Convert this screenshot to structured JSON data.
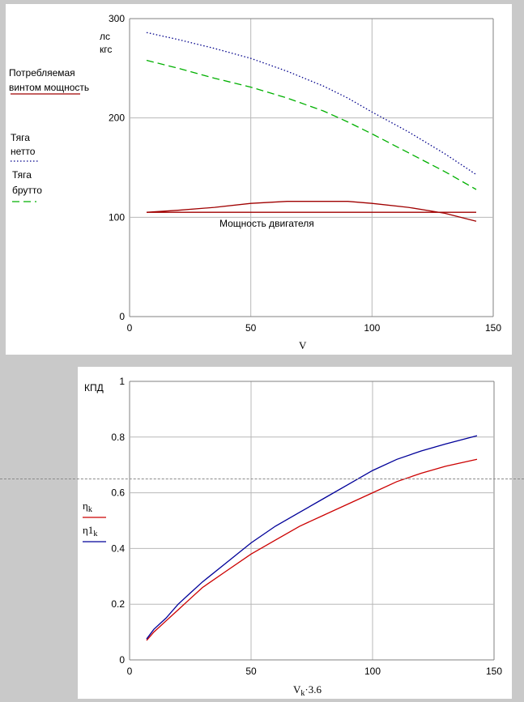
{
  "chart_data": [
    {
      "type": "line",
      "xlabel": "V",
      "units_label": [
        "лс",
        "кгс"
      ],
      "xlim": [
        0,
        150
      ],
      "ylim": [
        0,
        300
      ],
      "x_ticks": [
        0,
        50,
        100,
        150
      ],
      "y_ticks": [
        0,
        100,
        200,
        300
      ],
      "grid": true,
      "series": [
        {
          "name": "Потребляемая винтом мощность",
          "color": "#a00000",
          "style": "solid",
          "x": [
            7,
            20,
            35,
            50,
            65,
            80,
            90,
            100,
            115,
            130,
            143
          ],
          "y": [
            105,
            107,
            110,
            114,
            116,
            116,
            116,
            114,
            110,
            104,
            96
          ]
        },
        {
          "name": "Тяга нетто",
          "color": "#00008b",
          "style": "dotted",
          "x": [
            7,
            20,
            35,
            50,
            65,
            80,
            90,
            100,
            115,
            130,
            143
          ],
          "y": [
            286,
            279,
            270,
            260,
            247,
            232,
            220,
            206,
            186,
            164,
            143
          ]
        },
        {
          "name": "Тяга брутто",
          "color": "#00b000",
          "style": "dashed",
          "x": [
            7,
            20,
            35,
            50,
            65,
            80,
            90,
            100,
            115,
            130,
            143
          ],
          "y": [
            258,
            250,
            240,
            231,
            220,
            207,
            196,
            184,
            165,
            146,
            128
          ]
        },
        {
          "name": "Мощность двигателя",
          "color": "#a00000",
          "style": "solid",
          "x": [
            7,
            143
          ],
          "y": [
            105,
            105
          ]
        }
      ],
      "annotations": {
        "power_label": [
          "Потребляемая",
          "винтом мощность"
        ],
        "thrust_net_label": [
          "Тяга",
          "нетто"
        ],
        "thrust_gross_label": [
          "Тяга",
          "брутто"
        ],
        "engine_label": "Мощность двигателя"
      }
    },
    {
      "type": "line",
      "ylabel": "КПД",
      "xlabel": "Vk·3.6",
      "xlim": [
        0,
        150
      ],
      "ylim": [
        0,
        1
      ],
      "x_ticks": [
        0,
        50,
        100,
        150
      ],
      "y_ticks": [
        0,
        0.2,
        0.4,
        0.6,
        0.8,
        1
      ],
      "grid": true,
      "series": [
        {
          "name": "ηk",
          "color": "#cc0000",
          "style": "solid",
          "x": [
            7,
            10,
            15,
            20,
            25,
            30,
            40,
            50,
            60,
            70,
            80,
            90,
            100,
            110,
            120,
            130,
            143
          ],
          "y": [
            0.07,
            0.1,
            0.14,
            0.18,
            0.22,
            0.26,
            0.32,
            0.38,
            0.43,
            0.48,
            0.52,
            0.56,
            0.6,
            0.64,
            0.67,
            0.695,
            0.72
          ]
        },
        {
          "name": "η1k",
          "color": "#000099",
          "style": "solid",
          "x": [
            7,
            10,
            15,
            20,
            25,
            30,
            40,
            50,
            60,
            70,
            80,
            90,
            100,
            110,
            120,
            130,
            143
          ],
          "y": [
            0.075,
            0.11,
            0.15,
            0.2,
            0.24,
            0.28,
            0.35,
            0.42,
            0.48,
            0.53,
            0.58,
            0.63,
            0.68,
            0.72,
            0.75,
            0.775,
            0.805
          ]
        }
      ],
      "legend": {
        "eta_base": "η",
        "eta_sub": "k",
        "eta1_base": "η1",
        "eta1_sub": "k",
        "x_base": "V",
        "x_sub": "k",
        "x_tail": "·3.6"
      }
    }
  ]
}
